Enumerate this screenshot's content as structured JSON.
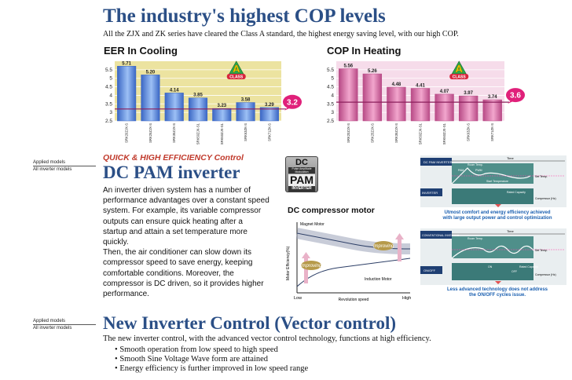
{
  "header": {
    "title": "The industry's highest COP levels",
    "subtitle": "All the ZJX and ZK series have cleared the Class A standard, the highest energy saving level, with our high COP."
  },
  "charts": {
    "eer_title": "EER In Cooling",
    "cop_title": "COP In Heating",
    "badge_letter": "A",
    "badge_word": "CLASS"
  },
  "chart_data": [
    {
      "type": "bar",
      "title": "EER In Cooling",
      "categories": [
        "SRK20ZJX-S",
        "SRK25ZJX-S",
        "SRK35ZJX-S",
        "SRK50ZJX-S1",
        "SRK60ZJX-S1",
        "SRK63ZK-S",
        "SRK71ZK-S"
      ],
      "values": [
        5.71,
        5.2,
        4.14,
        3.85,
        3.23,
        3.58,
        3.29
      ],
      "value_labels": [
        "5.71",
        "5.20",
        "4.14",
        "3.85",
        "3.23",
        "3.58",
        "3.29"
      ],
      "ylim": [
        2.5,
        6.0
      ],
      "yticks": [
        "2.5",
        "3",
        "3.5",
        "4",
        "4.5",
        "5",
        "5.5"
      ],
      "threshold": 3.2,
      "threshold_label": "3.2",
      "bar_color": "#5b86d9",
      "threshold_color": "#8b1f5c"
    },
    {
      "type": "bar",
      "title": "COP In Heating",
      "categories": [
        "SRK20ZJX-S",
        "SRK25ZJX-S",
        "SRK35ZJX-S",
        "SRK50ZJX-S1",
        "SRK60ZJX-S1",
        "SRK63ZK-S",
        "SRK71ZK-S"
      ],
      "values": [
        5.56,
        5.26,
        4.48,
        4.41,
        4.07,
        3.97,
        3.74
      ],
      "value_labels": [
        "5.56",
        "5.26",
        "4.48",
        "4.41",
        "4.07",
        "3.97",
        "3.74"
      ],
      "ylim": [
        2.5,
        6.0
      ],
      "yticks": [
        "2.5",
        "3",
        "3.5",
        "4",
        "4.5",
        "5",
        "5.5"
      ],
      "threshold": 3.6,
      "threshold_label": "3.6",
      "bar_color": "#d96fa8",
      "threshold_color": "#8b1f5c"
    }
  ],
  "pam": {
    "applied_title": "Applied models",
    "applied_value": "All inverter models",
    "kicker": "QUICK & HIGH EFFICIENCY Control",
    "heading": "DC PAM inverter",
    "logo_top": "DC",
    "logo_sub": "Pulse Amplitude Modulation",
    "logo_main": "PAM",
    "logo_bottom": "INVERTER",
    "body_lines": [
      "An inverter driven system has a number of",
      "performance advantages over a constant speed",
      "system. For example, its variable compressor",
      "outputs can ensure quick heating after a",
      "startup and attain a set temperature more",
      "quickly.",
      "Then, the air conditioner can slow down its",
      "compressor speed to save energy, keeping",
      "comfortable conditions. Moreover, the",
      "compressor is DC driven, so it provides higher",
      "performance."
    ]
  },
  "motor_chart": {
    "title": "DC compressor motor",
    "ylabel": "Motor Efficiency(%)",
    "xlabel": "Revolution speed",
    "x_low": "Low",
    "x_high": "High",
    "magnet_label": "Magnet Motor",
    "induction_label": "Induction Motor",
    "improving_label": "Improving"
  },
  "diagram_top": {
    "panel_label": "DC PAM INVERTER",
    "time_label": "Time",
    "room_temp": "Room Temp.",
    "pam_tag": "PAM",
    "pwm_tag": "PWM",
    "set_temp": "Set Temp.",
    "start_temp": "Start Temperature",
    "inverter_tag": "INVERTER",
    "rated_capacity": "Rated Capacity",
    "compressor": "Compressor (Hz)",
    "note_lines": [
      "Utmost comfort and energy efficiency achieved",
      "with large output power and control optimization"
    ]
  },
  "diagram_bottom": {
    "panel_label": "CONVENTIONAL INVERTER",
    "time_label": "Time",
    "room_temp": "Room Temp.",
    "set_temp": "Set Temp.",
    "onoff_tag": "ON/OFF",
    "on_label": "ON",
    "off_label": "OFF",
    "rated_capacity": "Rated Capacity",
    "compressor": "Compressor (Hz)",
    "note_lines": [
      "Less advanced technology does not address",
      "the ON/OFF cycles issue."
    ]
  },
  "vector": {
    "applied_title": "Applied models",
    "applied_value": "All inverter models",
    "heading": "New Inverter Control (Vector control)",
    "intro": "The new inverter control, with the advanced vector control technology, functions at high efficiency.",
    "bullets": [
      "Smooth operation  from low speed  to high speed",
      "Smooth Sine Voltage Wave form are attained",
      "Energy efficiency is further improved  in low speed range"
    ]
  }
}
